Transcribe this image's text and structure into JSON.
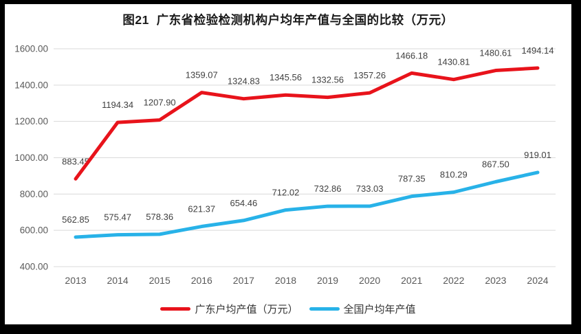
{
  "frame": {
    "border_color": "#000000",
    "page_background": "#ffffff"
  },
  "chart_data": {
    "type": "line",
    "title": "图21  广东省检验检测机构户均年产值与全国的比较（万元）",
    "categories": [
      "2013",
      "2014",
      "2015",
      "2016",
      "2017",
      "2018",
      "2019",
      "2020",
      "2021",
      "2022",
      "2023",
      "2024"
    ],
    "series": [
      {
        "name": "广东户均产值（万元）",
        "color": "#e8131b",
        "values": [
          883.45,
          1194.34,
          1207.9,
          1359.07,
          1324.83,
          1345.56,
          1332.56,
          1357.26,
          1466.18,
          1430.81,
          1480.61,
          1494.14
        ]
      },
      {
        "name": "全国户均年产值",
        "color": "#28b2e8",
        "values": [
          562.85,
          575.47,
          578.36,
          621.37,
          654.46,
          712.02,
          732.86,
          733.03,
          787.35,
          810.29,
          867.5,
          919.01
        ]
      }
    ],
    "xlabel": "",
    "ylabel": "",
    "ylim": [
      400,
      1600
    ],
    "y_step": 200,
    "y_ticks": [
      "400.00",
      "600.00",
      "800.00",
      "1000.00",
      "1200.00",
      "1400.00",
      "1600.00"
    ],
    "grid": true,
    "gridline_color": "#d9d9d9",
    "axis_label_color": "#595959",
    "data_label_color": "#404040",
    "data_labels": true,
    "legend_position": "bottom"
  }
}
